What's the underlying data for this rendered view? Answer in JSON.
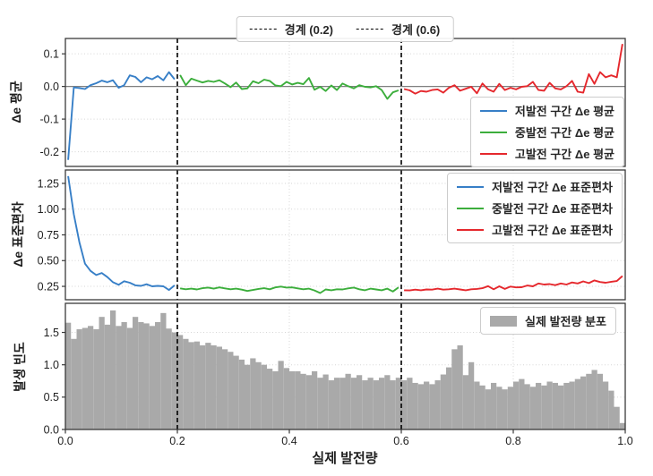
{
  "figure": {
    "background": "#ffffff",
    "boundary_legend": [
      {
        "label": "경계 (0.2)",
        "x": 0.2
      },
      {
        "label": "경계 (0.6)",
        "x": 0.6
      }
    ]
  },
  "colors": {
    "low": "#377fc7",
    "mid": "#3cae3c",
    "high": "#e5282d",
    "hist": "#a9a9a9",
    "boundary": "#000000",
    "zero_line": "#7f7f7f",
    "grid": "#d6d6d6",
    "spine": "#3a3a3a",
    "text": "#1f1f1f"
  },
  "x_axis": {
    "label": "실제 발전량",
    "range": [
      0.0,
      1.0
    ],
    "ticks": [
      0.0,
      0.2,
      0.4,
      0.6,
      0.8,
      1.0
    ],
    "tick_labels": [
      "0.0",
      "0.2",
      "0.4",
      "0.6",
      "0.8",
      "1.0"
    ]
  },
  "boundaries": [
    0.2,
    0.6
  ],
  "chart_data": [
    {
      "type": "line",
      "panel": "mean",
      "ylabel": "Δe 평균",
      "ylim": [
        -0.245,
        0.147
      ],
      "yticks": [
        0.1,
        0.0,
        -0.1,
        -0.2
      ],
      "ytick_labels": [
        "0.1",
        "0.0",
        "-0.1",
        "-0.2"
      ],
      "zero_line": 0.0,
      "legend_position": "lower right",
      "series": [
        {
          "name": "저발전 구간 Δe 평균",
          "color_key": "low",
          "x_start": 0.005,
          "x_step": 0.01,
          "values": [
            -0.225,
            -0.003,
            -0.005,
            -0.008,
            0.004,
            0.01,
            0.018,
            0.013,
            0.019,
            -0.004,
            0.004,
            0.034,
            0.029,
            0.013,
            0.028,
            0.022,
            0.032,
            0.019,
            0.044,
            0.022
          ]
        },
        {
          "name": "중발전 구간 Δe 평균",
          "color_key": "mid",
          "x_start": 0.205,
          "x_step": 0.01,
          "values": [
            0.035,
            0.004,
            0.024,
            0.018,
            0.012,
            0.017,
            0.014,
            0.019,
            0.009,
            -0.002,
            0.012,
            -0.008,
            -0.006,
            0.016,
            0.01,
            0.021,
            0.017,
            0.003,
            0.001,
            0.014,
            0.006,
            0.011,
            0.007,
            0.026,
            -0.01,
            -0.001,
            -0.014,
            0.003,
            -0.011,
            0.009,
            0.001,
            -0.006,
            0.004,
            -0.001,
            -0.003,
            0.001,
            -0.011,
            -0.038,
            -0.018,
            -0.012
          ]
        },
        {
          "name": "고발전 구간 Δe 평균",
          "color_key": "high",
          "x_start": 0.605,
          "x_step": 0.01,
          "values": [
            -0.008,
            -0.012,
            -0.022,
            -0.014,
            -0.016,
            -0.011,
            -0.009,
            -0.019,
            -0.004,
            0.004,
            -0.013,
            -0.007,
            -0.001,
            -0.021,
            0.009,
            -0.009,
            -0.016,
            0.008,
            -0.011,
            -0.004,
            -0.009,
            -0.001,
            0.001,
            0.014,
            -0.011,
            -0.013,
            0.011,
            -0.006,
            -0.009,
            0.001,
            0.017,
            -0.016,
            -0.019,
            0.038,
            0.008,
            0.044,
            0.028,
            0.034,
            0.028,
            0.13
          ]
        }
      ]
    },
    {
      "type": "line",
      "panel": "std",
      "ylabel": "Δe 표준편차",
      "ylim": [
        0.12,
        1.38
      ],
      "yticks": [
        1.25,
        1.0,
        0.75,
        0.5,
        0.25
      ],
      "ytick_labels": [
        "1.25",
        "1.00",
        "0.75",
        "0.50",
        "0.25"
      ],
      "legend_position": "upper right",
      "series": [
        {
          "name": "저발전 구간 Δe 표준편차",
          "color_key": "low",
          "x_start": 0.005,
          "x_step": 0.01,
          "values": [
            1.32,
            0.95,
            0.68,
            0.47,
            0.4,
            0.36,
            0.38,
            0.34,
            0.29,
            0.265,
            0.3,
            0.285,
            0.26,
            0.255,
            0.27,
            0.25,
            0.255,
            0.25,
            0.215,
            0.26
          ]
        },
        {
          "name": "중발전 구간 Δe 표준편차",
          "color_key": "mid",
          "x_start": 0.205,
          "x_step": 0.01,
          "values": [
            0.23,
            0.222,
            0.228,
            0.22,
            0.232,
            0.238,
            0.228,
            0.24,
            0.23,
            0.222,
            0.228,
            0.218,
            0.205,
            0.215,
            0.225,
            0.232,
            0.222,
            0.24,
            0.248,
            0.238,
            0.24,
            0.23,
            0.222,
            0.228,
            0.21,
            0.185,
            0.22,
            0.212,
            0.222,
            0.22,
            0.23,
            0.238,
            0.222,
            0.212,
            0.228,
            0.22,
            0.212,
            0.228,
            0.2,
            0.24
          ]
        },
        {
          "name": "고발전 구간 Δe 표준편차",
          "color_key": "high",
          "x_start": 0.605,
          "x_step": 0.01,
          "values": [
            0.212,
            0.21,
            0.218,
            0.212,
            0.22,
            0.218,
            0.228,
            0.218,
            0.222,
            0.228,
            0.22,
            0.212,
            0.222,
            0.225,
            0.232,
            0.252,
            0.222,
            0.25,
            0.225,
            0.248,
            0.24,
            0.242,
            0.258,
            0.25,
            0.278,
            0.268,
            0.272,
            0.262,
            0.278,
            0.268,
            0.288,
            0.278,
            0.298,
            0.282,
            0.308,
            0.292,
            0.285,
            0.295,
            0.302,
            0.35
          ]
        }
      ]
    },
    {
      "type": "bar",
      "panel": "hist",
      "ylabel": "발생 빈도",
      "ylim": [
        0.0,
        1.95
      ],
      "yticks": [
        1.5,
        1.0,
        0.5,
        0.0
      ],
      "ytick_labels": [
        "1.5",
        "1.0",
        "0.5",
        "0.0"
      ],
      "legend": "실제 발전량 분포",
      "legend_position": "upper right",
      "bar_start": 0.0,
      "bar_width": 0.01,
      "values": [
        1.65,
        1.4,
        1.55,
        1.57,
        1.6,
        1.55,
        1.74,
        1.62,
        1.84,
        1.6,
        1.66,
        1.57,
        1.74,
        1.66,
        1.64,
        1.6,
        1.66,
        1.8,
        1.56,
        1.5,
        1.46,
        1.4,
        1.35,
        1.36,
        1.3,
        1.34,
        1.3,
        1.28,
        1.24,
        1.2,
        1.14,
        1.08,
        1.0,
        1.1,
        1.04,
        1.0,
        0.94,
        0.9,
        1.06,
        0.95,
        0.9,
        0.9,
        0.86,
        0.84,
        0.9,
        0.8,
        0.85,
        0.76,
        0.8,
        0.8,
        0.86,
        0.8,
        0.84,
        0.76,
        0.8,
        0.76,
        0.8,
        0.84,
        0.76,
        0.8,
        0.76,
        0.8,
        0.72,
        0.7,
        0.74,
        0.7,
        0.76,
        0.85,
        0.96,
        1.24,
        1.3,
        0.84,
        1.04,
        0.74,
        0.68,
        0.62,
        0.72,
        0.66,
        0.62,
        0.66,
        0.74,
        0.78,
        0.7,
        0.66,
        0.72,
        0.68,
        0.74,
        0.72,
        0.68,
        0.72,
        0.74,
        0.78,
        0.82,
        0.86,
        0.92,
        0.86,
        0.74,
        0.6,
        0.35,
        0.1
      ]
    }
  ]
}
